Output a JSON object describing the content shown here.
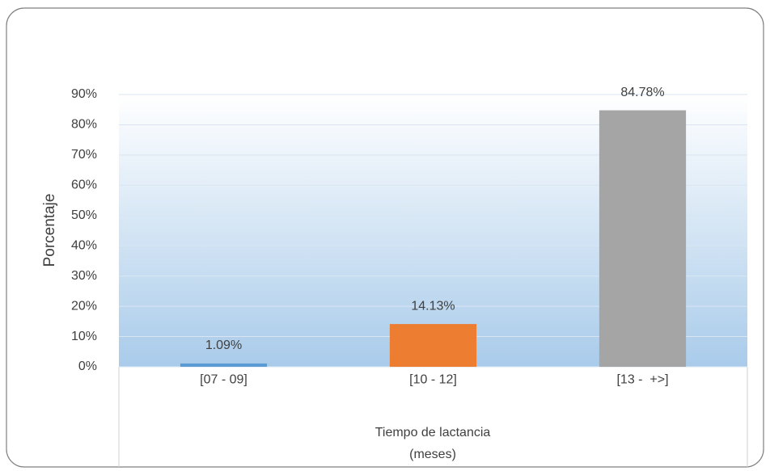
{
  "chart_data": {
    "type": "bar",
    "categories": [
      "[07 - 09]",
      "[10 - 12]",
      "[13 -  +>]"
    ],
    "values": [
      1.09,
      14.13,
      84.78
    ],
    "value_labels": [
      "1.09%",
      "14.13%",
      "84.78%"
    ],
    "colors": [
      "#5b9bd5",
      "#ed7d31",
      "#a5a5a5"
    ],
    "ylabel": "Porcentaje",
    "xlabel": [
      "Tiempo de lactancia",
      "(meses)"
    ],
    "ylim": [
      0,
      90
    ],
    "yticks": [
      {
        "value": 0,
        "label": "0%"
      },
      {
        "value": 10,
        "label": "10%"
      },
      {
        "value": 20,
        "label": "20%"
      },
      {
        "value": 30,
        "label": "30%"
      },
      {
        "value": 40,
        "label": "40%"
      },
      {
        "value": 50,
        "label": "50%"
      },
      {
        "value": 60,
        "label": "60%"
      },
      {
        "value": 70,
        "label": "70%"
      },
      {
        "value": 80,
        "label": "80%"
      },
      {
        "value": 90,
        "label": "90%"
      }
    ],
    "grid": true
  }
}
